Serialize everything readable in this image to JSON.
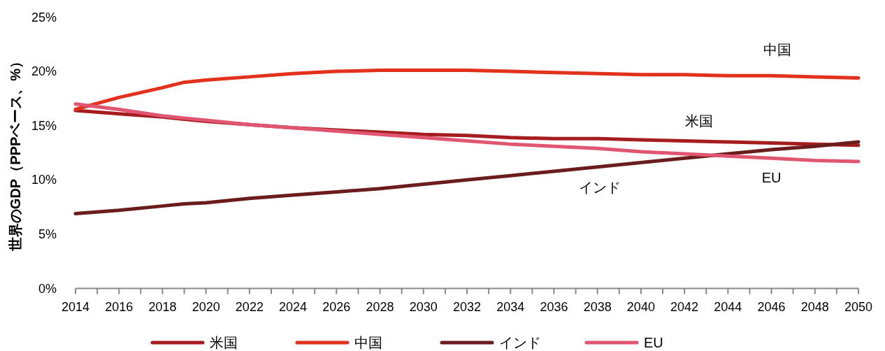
{
  "chart_data": {
    "type": "line",
    "ylabel": "世界のGDP（PPPベース、%）",
    "x": [
      2014,
      2016,
      2018,
      2019,
      2020,
      2022,
      2024,
      2026,
      2028,
      2030,
      2032,
      2034,
      2036,
      2038,
      2040,
      2042,
      2044,
      2046,
      2048,
      2050
    ],
    "xlim": [
      2014,
      2050
    ],
    "xticks": [
      2014,
      {
        "value": 2015,
        "label": null
      },
      2016,
      {
        "value": 2017,
        "label": null
      },
      2018,
      {
        "value": 2019,
        "label": null
      },
      2020,
      {
        "value": 2021,
        "label": null
      },
      2022,
      {
        "value": 2023,
        "label": null
      },
      2024,
      {
        "value": 2025,
        "label": null
      },
      2026,
      {
        "value": 2027,
        "label": null
      },
      2028,
      {
        "value": 2029,
        "label": null
      },
      2030,
      {
        "value": 2031,
        "label": null
      },
      2032,
      {
        "value": 2033,
        "label": null
      },
      2034,
      {
        "value": 2035,
        "label": null
      },
      2036,
      {
        "value": 2037,
        "label": null
      },
      2038,
      {
        "value": 2039,
        "label": null
      },
      2040,
      {
        "value": 2041,
        "label": null
      },
      2042,
      {
        "value": 2043,
        "label": null
      },
      2044,
      {
        "value": 2045,
        "label": null
      },
      2046,
      {
        "value": 2047,
        "label": null
      },
      2048,
      {
        "value": 2049,
        "label": null
      },
      2050
    ],
    "ylim": [
      0,
      25
    ],
    "yticks": [
      {
        "value": 0,
        "label": "0%"
      },
      {
        "value": 5,
        "label": "5%"
      },
      {
        "value": 10,
        "label": "10%"
      },
      {
        "value": 15,
        "label": "15%"
      },
      {
        "value": 20,
        "label": "20%"
      },
      {
        "value": 25,
        "label": "25%"
      }
    ],
    "series": [
      {
        "name": "米国",
        "color": "#a51d1f",
        "values": [
          16.4,
          16.1,
          15.8,
          15.6,
          15.4,
          15.1,
          14.8,
          14.6,
          14.4,
          14.2,
          14.1,
          13.9,
          13.8,
          13.8,
          13.7,
          13.6,
          13.5,
          13.4,
          13.3,
          13.2
        ]
      },
      {
        "name": "中国",
        "color": "#e2311d",
        "values": [
          16.5,
          17.6,
          18.5,
          19.0,
          19.2,
          19.5,
          19.8,
          20.0,
          20.1,
          20.1,
          20.1,
          20.0,
          19.9,
          19.8,
          19.7,
          19.7,
          19.6,
          19.6,
          19.5,
          19.4
        ]
      },
      {
        "name": "インド",
        "color": "#6b1c1c",
        "values": [
          6.9,
          7.2,
          7.6,
          7.8,
          7.9,
          8.3,
          8.6,
          8.9,
          9.2,
          9.6,
          10.0,
          10.4,
          10.8,
          11.2,
          11.6,
          12.0,
          12.4,
          12.8,
          13.1,
          13.5
        ]
      },
      {
        "name": "EU",
        "color": "#e05570",
        "values": [
          17.0,
          16.5,
          15.9,
          15.7,
          15.5,
          15.1,
          14.8,
          14.5,
          14.2,
          13.9,
          13.6,
          13.3,
          13.1,
          12.9,
          12.6,
          12.4,
          12.2,
          12.0,
          11.8,
          11.7
        ]
      }
    ],
    "legend": "bottom"
  }
}
